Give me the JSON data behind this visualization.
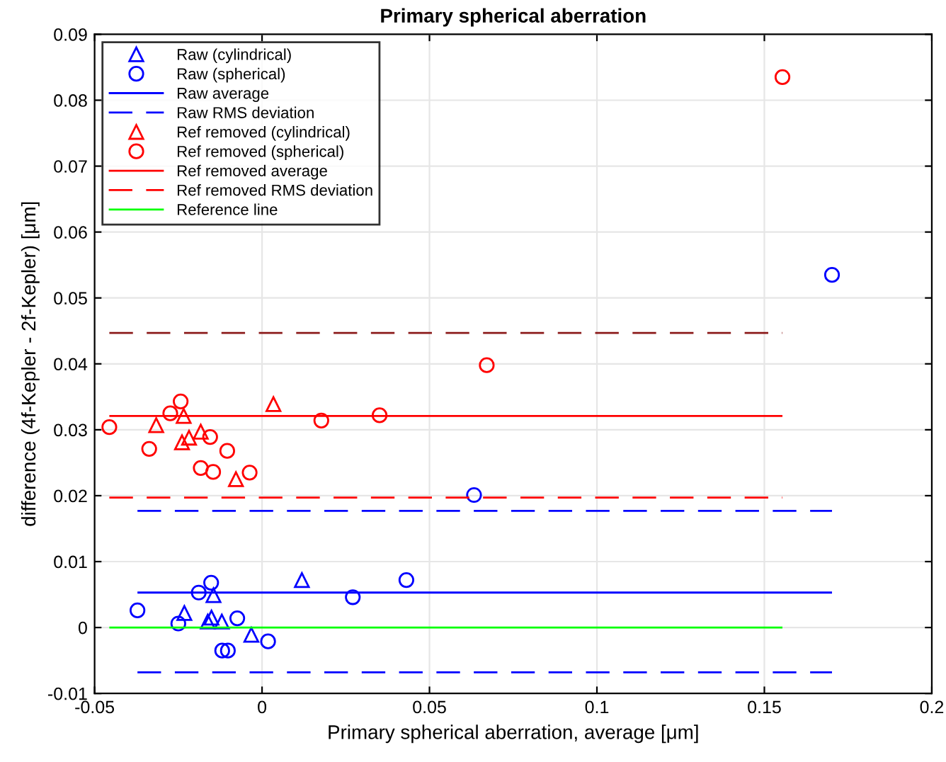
{
  "chart_data": {
    "type": "scatter",
    "title": "Primary spherical aberration",
    "xlabel": "Primary spherical aberration, average [μm]",
    "ylabel": "difference (4f-Kepler - 2f-Kepler) [μm]",
    "xlim": [
      -0.05,
      0.2
    ],
    "xticks": [
      -0.05,
      0,
      0.05,
      0.1,
      0.15,
      0.2
    ],
    "ylim": [
      -0.01,
      0.09
    ],
    "yticks": [
      -0.01,
      0,
      0.01,
      0.02,
      0.03,
      0.04,
      0.05,
      0.06,
      0.07,
      0.08,
      0.09
    ],
    "grid": true,
    "legend": "top left",
    "series": [
      {
        "name": "Raw (cylindrical)",
        "marker": "triangle",
        "color": "#0000ff",
        "x": [
          -0.0232,
          -0.0145,
          -0.0162,
          -0.0151,
          -0.012,
          -0.0032,
          0.0119
        ],
        "values": [
          0.0022,
          0.0049,
          0.0009,
          0.0015,
          0.0009,
          -0.0011,
          0.0072
        ]
      },
      {
        "name": "Raw (spherical)",
        "marker": "circle",
        "color": "#0000ff",
        "x": [
          -0.0372,
          -0.025,
          -0.0189,
          -0.0152,
          -0.0074,
          0.0018,
          -0.0119,
          -0.0102,
          0.0271,
          0.0431,
          0.0633,
          0.1702
        ],
        "values": [
          0.0026,
          0.0006,
          0.0053,
          0.0068,
          0.0014,
          -0.0021,
          -0.0035,
          -0.0035,
          0.0046,
          0.0072,
          0.0201,
          0.0535
        ]
      },
      {
        "name": "Raw average",
        "type": "line",
        "line_style": "solid",
        "color": "#0000ff",
        "x": [
          -0.0372,
          0.1702
        ],
        "values": [
          0.0053,
          0.0053
        ]
      },
      {
        "name": "Raw RMS deviation",
        "type": "line",
        "line_style": "dashed",
        "color": "#0000ff",
        "x": [
          -0.0372,
          0.1702
        ],
        "values": [
          0.0177,
          0.0177
        ]
      },
      {
        "type": "line",
        "line_style": "dashed",
        "color": "#0000ff",
        "x": [
          -0.0372,
          0.1702
        ],
        "values": [
          -0.0068,
          -0.0068
        ]
      },
      {
        "name": "Ref removed (cylindrical)",
        "marker": "triangle",
        "color": "#ff0000",
        "x": [
          -0.0316,
          -0.0234,
          -0.0239,
          -0.0218,
          -0.0183,
          -0.0078,
          0.0034
        ],
        "values": [
          0.0307,
          0.0321,
          0.0281,
          0.0288,
          0.0297,
          0.0225,
          0.0339
        ]
      },
      {
        "name": "Ref removed (spherical)",
        "marker": "circle",
        "color": "#ff0000",
        "x": [
          -0.0456,
          -0.0243,
          -0.0274,
          -0.0337,
          -0.0155,
          -0.0104,
          -0.0183,
          -0.0146,
          -0.0037,
          0.0177,
          0.0351,
          0.0671,
          0.1554
        ],
        "values": [
          0.0304,
          0.0343,
          0.0325,
          0.0271,
          0.0289,
          0.0268,
          0.0242,
          0.0236,
          0.0235,
          0.0314,
          0.0322,
          0.0398,
          0.0835
        ]
      },
      {
        "name": "Ref removed average",
        "type": "line",
        "line_style": "solid",
        "color": "#ff0000",
        "x": [
          -0.0456,
          0.1554
        ],
        "values": [
          0.0321,
          0.0321
        ]
      },
      {
        "name": "Ref removed RMS deviation",
        "type": "line",
        "line_style": "dashed",
        "color": "#ff0000",
        "x": [
          -0.0456,
          0.1554
        ],
        "values": [
          0.0197,
          0.0197
        ]
      },
      {
        "type": "line",
        "line_style": "dashed",
        "color": "#8b1a1a",
        "x": [
          -0.0456,
          0.1554
        ],
        "values": [
          0.0447,
          0.0447
        ]
      },
      {
        "name": "Reference line",
        "type": "line",
        "line_style": "solid",
        "color": "#00ff00",
        "x": [
          -0.0456,
          0.1554
        ],
        "values": [
          0,
          0
        ]
      }
    ]
  }
}
